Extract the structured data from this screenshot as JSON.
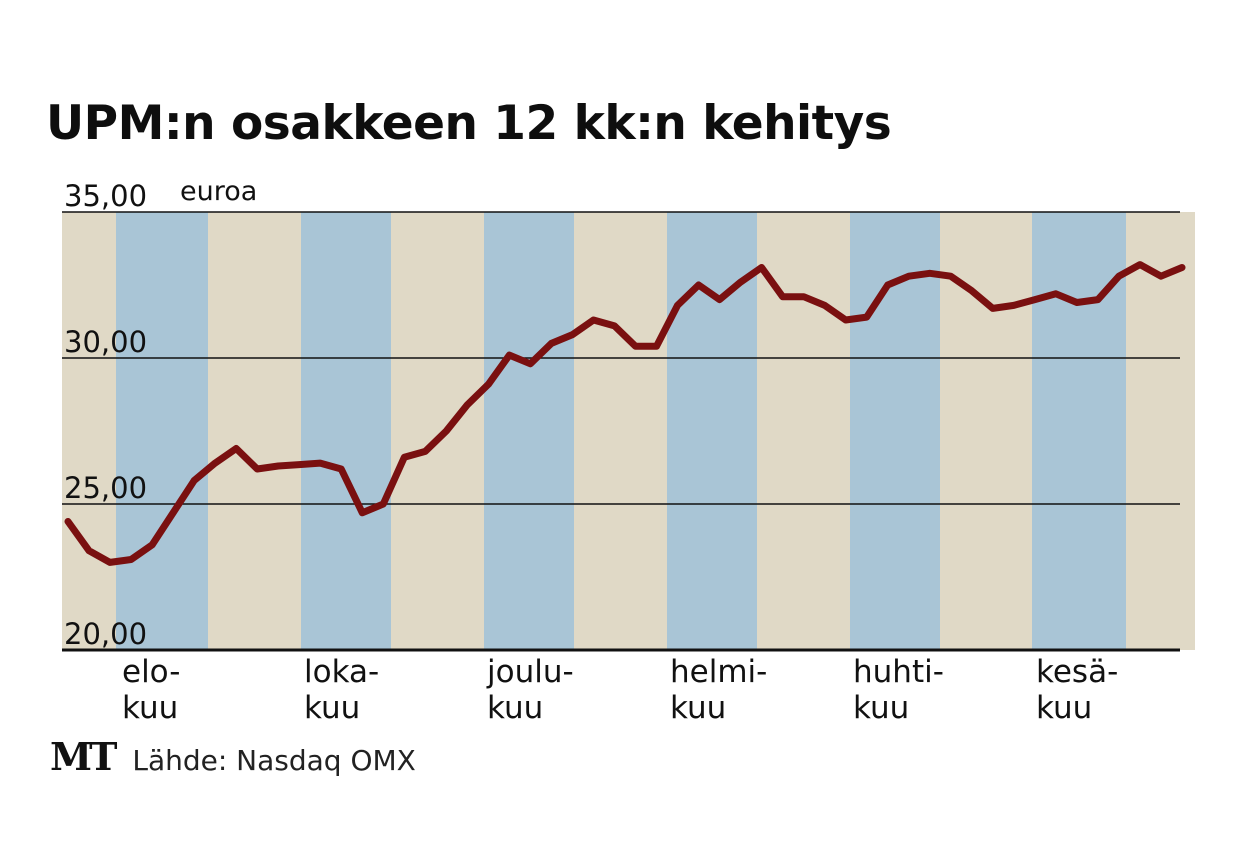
{
  "title": "UPM:n osakkeen 12 kk:n kehitys",
  "source": {
    "logo": "MT",
    "text": "Lähde: Nasdaq OMX"
  },
  "colors": {
    "line": "#7a1010",
    "band_blue": "#a9c5d6",
    "band_beige": "#e0d9c6"
  },
  "chart_data": {
    "type": "line",
    "title": "UPM:n osakkeen 12 kk:n kehitys",
    "ylabel": "euroa",
    "ylim": [
      20,
      35
    ],
    "yticks": [
      "20,00",
      "25,00",
      "30,00",
      "35,00"
    ],
    "ytick_values": [
      20,
      25,
      30,
      35
    ],
    "grid": true,
    "month_labels": [
      [
        "elo-",
        "kuu"
      ],
      [
        "loka-",
        "kuu"
      ],
      [
        "joulu-",
        "kuu"
      ],
      [
        "helmi-",
        "kuu"
      ],
      [
        "huhti-",
        "kuu"
      ],
      [
        "kesä-",
        "kuu"
      ]
    ],
    "series": [
      {
        "values": [
          24.4,
          23.4,
          23.0,
          23.1,
          23.6,
          24.7,
          25.8,
          26.4,
          26.9,
          26.2,
          26.3,
          26.35,
          26.4,
          26.2,
          24.7,
          25.0,
          26.6,
          26.8,
          27.5,
          28.4,
          29.1,
          30.1,
          29.8,
          30.5,
          30.8,
          31.3,
          31.1,
          30.4,
          30.4,
          31.8,
          32.5,
          32.0,
          32.6,
          33.1,
          32.1,
          32.1,
          31.8,
          31.3,
          31.4,
          32.5,
          32.8,
          32.9,
          32.8,
          32.3,
          31.7,
          31.8,
          32.0,
          32.2,
          31.9,
          32.0,
          32.8,
          33.2,
          32.8,
          33.1
        ]
      }
    ]
  }
}
